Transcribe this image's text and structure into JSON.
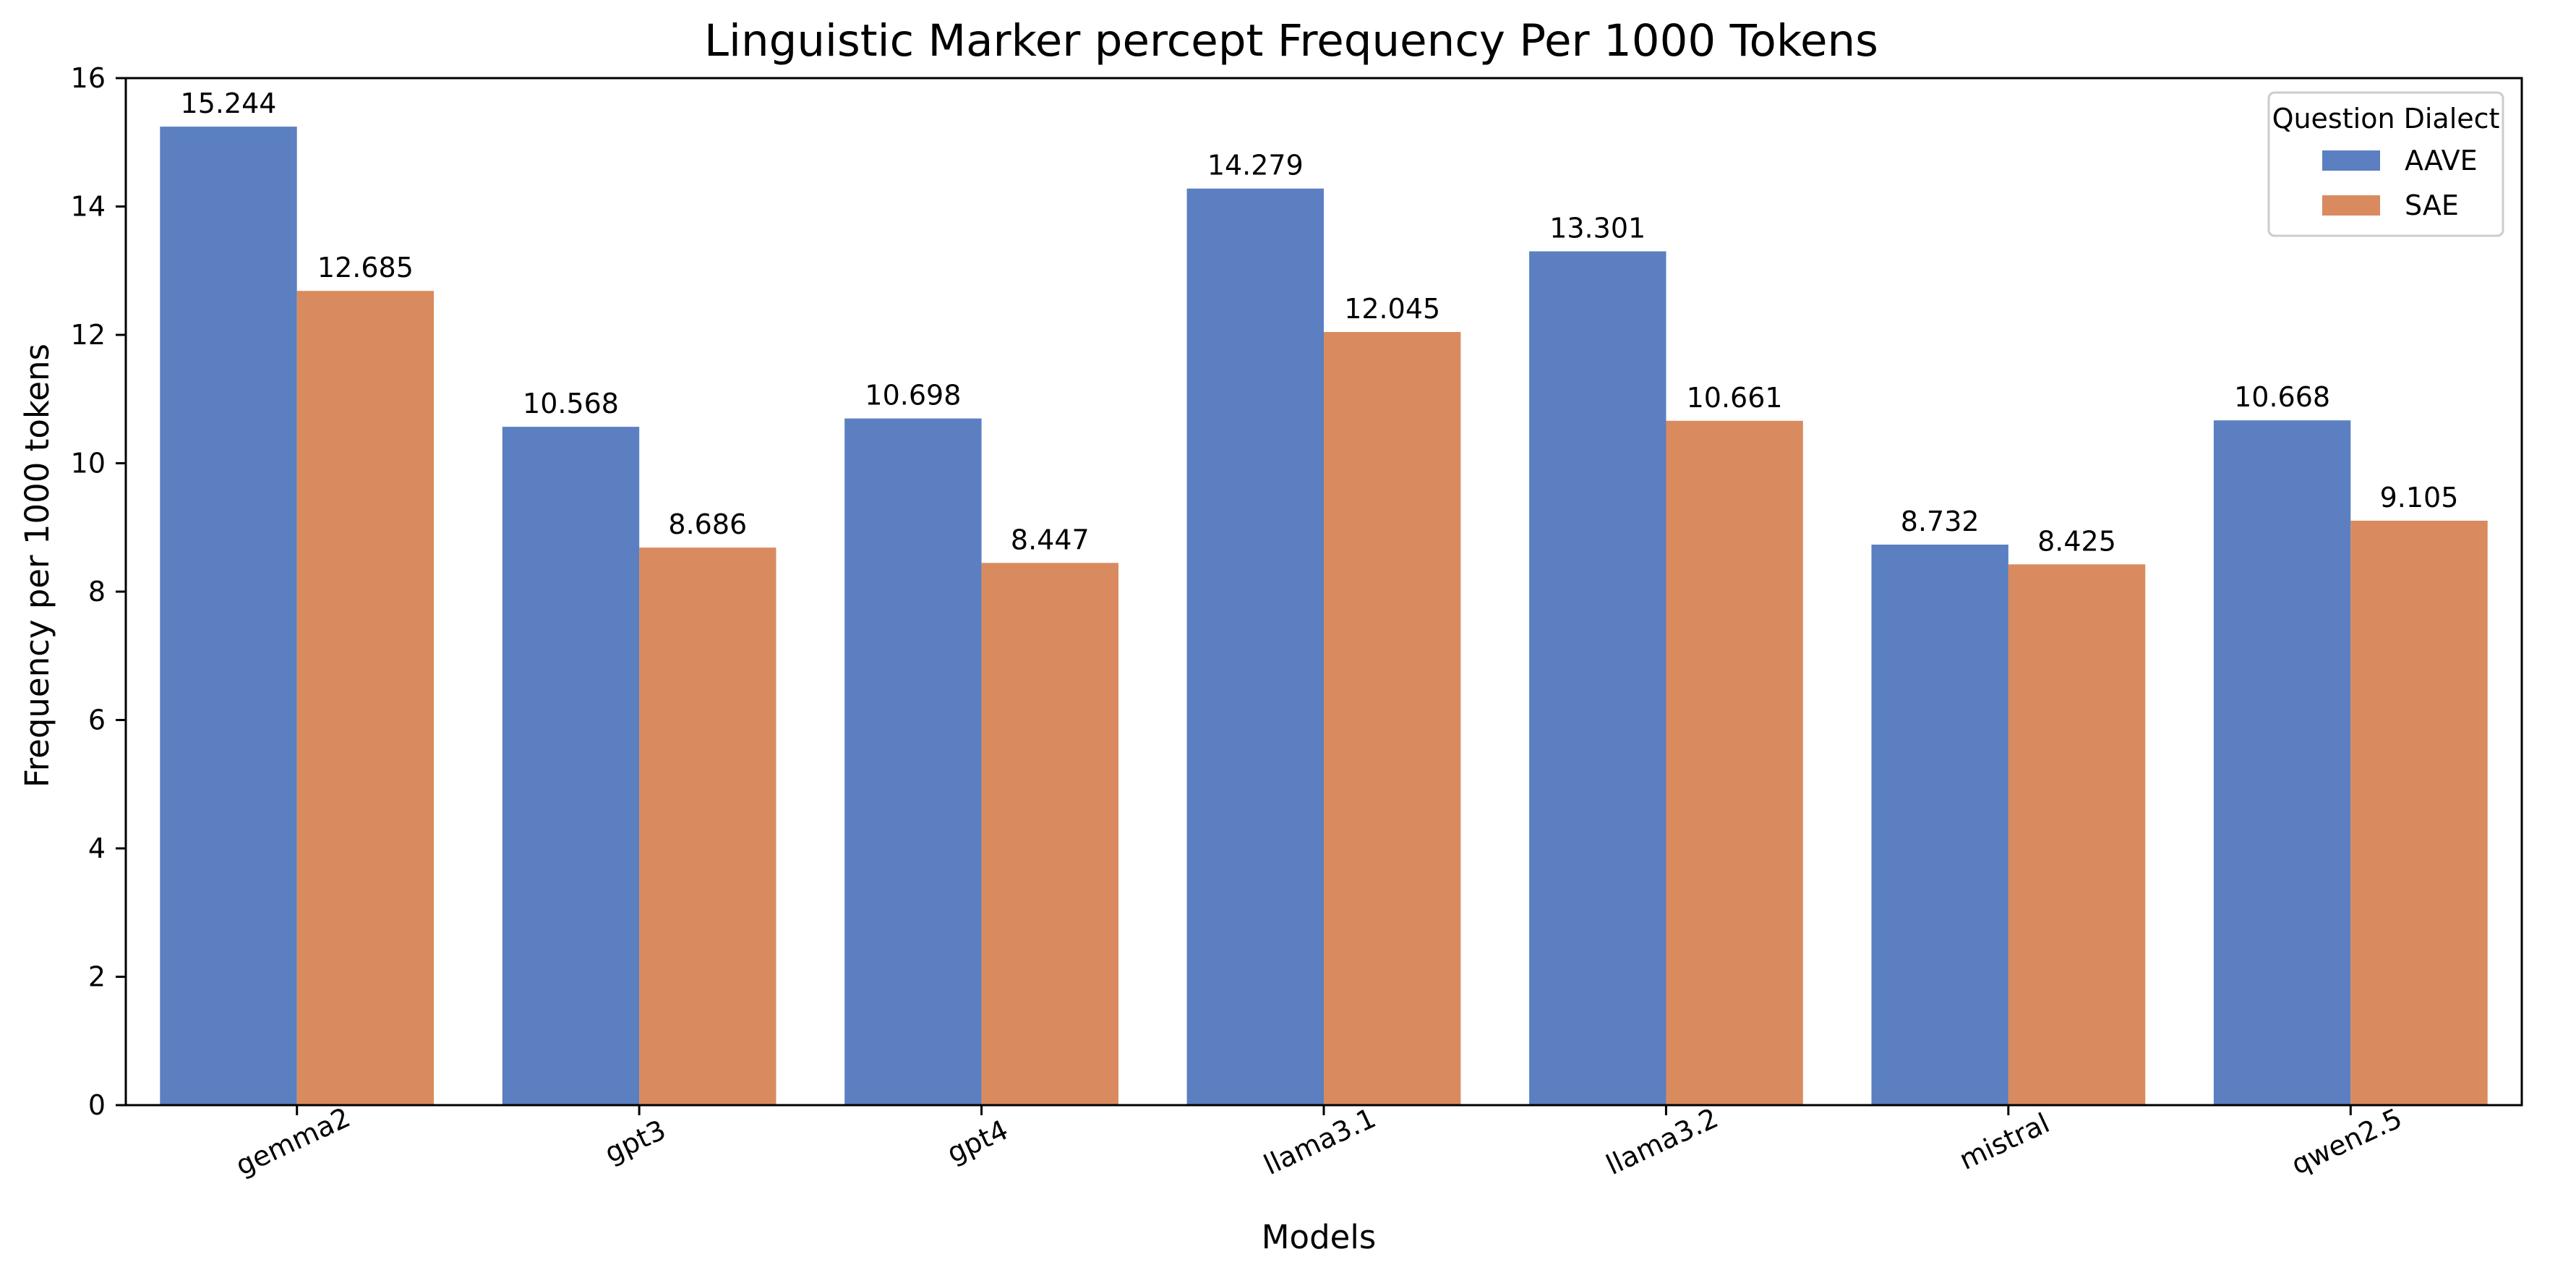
{
  "chart_data": {
    "type": "bar",
    "title": "Linguistic Marker percept Frequency Per 1000 Tokens",
    "xlabel": "Models",
    "ylabel": "Frequency per 1000 tokens",
    "ylim": [
      0,
      16
    ],
    "yticks": [
      0,
      2,
      4,
      6,
      8,
      10,
      12,
      14,
      16
    ],
    "categories": [
      "gemma2",
      "gpt3",
      "gpt4",
      "llama3.1",
      "llama3.2",
      "mistral",
      "qwen2.5"
    ],
    "series": [
      {
        "name": "AAVE",
        "color": "#5b7fc1",
        "values": [
          15.244,
          10.568,
          10.698,
          14.279,
          13.301,
          8.732,
          10.668
        ]
      },
      {
        "name": "SAE",
        "color": "#d98b5f",
        "values": [
          12.685,
          8.686,
          8.447,
          12.045,
          10.661,
          8.425,
          9.105
        ]
      }
    ],
    "legend": {
      "title": "Question Dialect",
      "placement": "top-right"
    },
    "grid": false,
    "xtick_rotation": -25
  }
}
